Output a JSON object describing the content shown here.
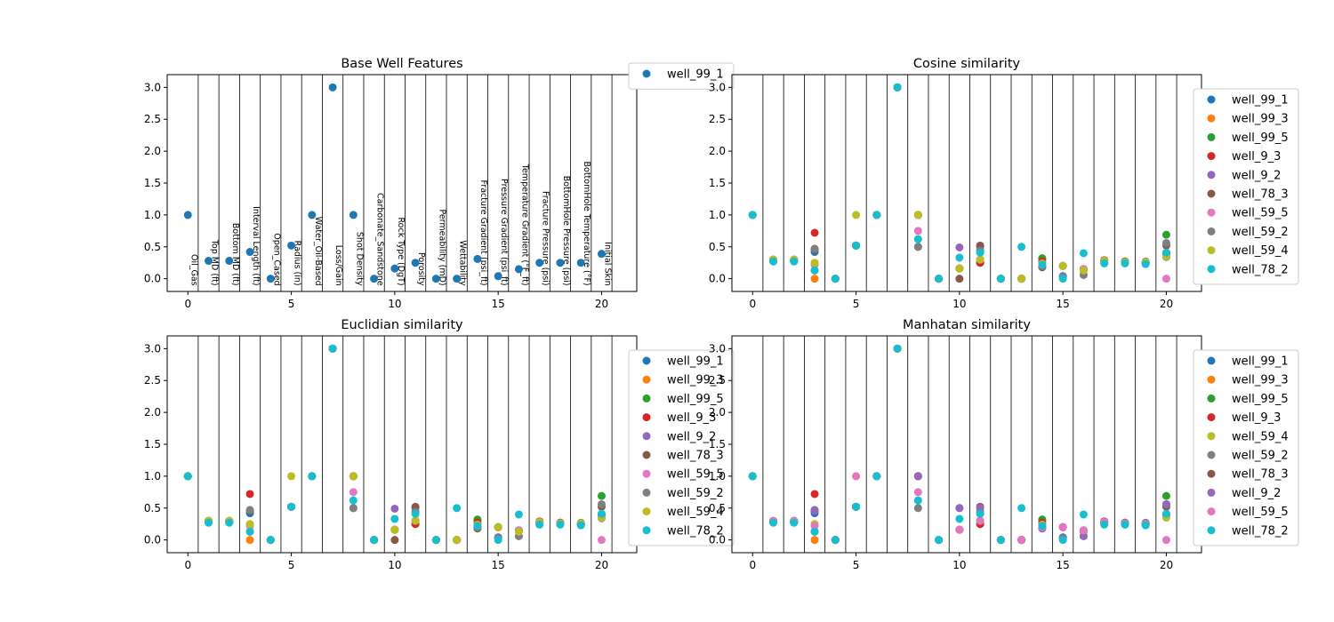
{
  "colors": {
    "well_99_1": "#1f77b4",
    "well_99_3": "#ff7f0e",
    "well_99_5": "#2ca02c",
    "well_9_3": "#d62728",
    "well_9_2": "#9467bd",
    "well_78_3": "#8c564b",
    "well_59_5": "#e377c2",
    "well_59_2": "#7f7f7f",
    "well_59_4": "#bcbd22",
    "well_78_2": "#17becf"
  },
  "chart_data": [
    {
      "type": "scatter",
      "title": "Base Well Features",
      "xlim": [
        -1,
        21.7
      ],
      "ylim": [
        -0.2,
        3.2
      ],
      "x_ticks": [
        0,
        5,
        10,
        15,
        20
      ],
      "y_ticks": [
        0.0,
        0.5,
        1.0,
        1.5,
        2.0,
        2.5,
        3.0
      ],
      "grid": "vertical lines between features",
      "legend_position": "outside top-right",
      "feature_labels": [
        "Oil_Gas",
        "Top MD (ft)",
        "Bottom MD (ft)",
        "Interval Length (ft)",
        "Open_Cased",
        "Radius (in)",
        "Water_Oil-Based",
        "Loss/Gain",
        "Shot Density",
        "Carbonate_Sandstone",
        "Rock Type (DgT)",
        "Porosity",
        "Permeability (mD)",
        "Wettability",
        "Fracture Gradient (psi_ft)",
        "Pressure Gradient (psi_ft)",
        "Temperature Gradient (°F_ft)",
        "Fracture Pressure (psi)",
        "BottomHole Pressure (psi)",
        "BottomHole Temperature (°F)",
        "Initial Skin"
      ],
      "series": [
        {
          "name": "well_99_1",
          "values": [
            1.0,
            0.28,
            0.28,
            0.42,
            0.0,
            0.52,
            1.0,
            3.0,
            1.0,
            0.0,
            0.16,
            0.25,
            0.0,
            0.0,
            0.31,
            0.04,
            0.15,
            0.25,
            0.25,
            0.25,
            0.39
          ]
        }
      ]
    },
    {
      "type": "scatter",
      "title": "Cosine similarity",
      "xlim": [
        -1,
        21.7
      ],
      "ylim": [
        -0.2,
        3.2
      ],
      "x_ticks": [
        0,
        5,
        10,
        15,
        20
      ],
      "y_ticks": [
        0.0,
        0.5,
        1.0,
        1.5,
        2.0,
        2.5,
        3.0
      ],
      "legend_position": "outside right",
      "series": [
        {
          "name": "well_99_1",
          "values": [
            1.0,
            0.28,
            0.28,
            0.42,
            0.0,
            0.52,
            1.0,
            3.0,
            1.0,
            0.0,
            0.16,
            0.25,
            0.0,
            0.0,
            0.31,
            0.04,
            0.15,
            0.25,
            0.25,
            0.25,
            0.39
          ]
        },
        {
          "name": "well_99_3",
          "values": [
            1.0,
            0.3,
            0.3,
            0.0,
            0.0,
            0.52,
            1.0,
            3.0,
            1.0,
            0.0,
            0.16,
            0.3,
            0.0,
            0.0,
            0.31,
            0.2,
            0.15,
            0.28,
            0.27,
            0.26,
            0.4
          ]
        },
        {
          "name": "well_99_5",
          "values": [
            1.0,
            0.3,
            0.3,
            0.13,
            0.0,
            0.52,
            1.0,
            3.0,
            1.0,
            0.0,
            0.16,
            0.3,
            0.0,
            0.0,
            0.32,
            0.04,
            0.15,
            0.28,
            0.26,
            0.26,
            0.69
          ]
        },
        {
          "name": "well_9_3",
          "values": [
            1.0,
            0.28,
            0.28,
            0.72,
            0.0,
            0.52,
            1.0,
            3.0,
            1.0,
            0.0,
            0.16,
            0.25,
            0.0,
            0.0,
            0.27,
            0.2,
            0.15,
            0.29,
            0.27,
            0.25,
            0.4
          ]
        },
        {
          "name": "well_9_2",
          "values": [
            1.0,
            0.28,
            0.28,
            0.46,
            0.0,
            0.52,
            1.0,
            3.0,
            1.0,
            0.0,
            0.49,
            0.5,
            0.0,
            0.0,
            0.18,
            0.03,
            0.06,
            0.28,
            0.26,
            0.25,
            0.34
          ]
        },
        {
          "name": "well_78_3",
          "values": [
            1.0,
            0.28,
            0.28,
            0.46,
            0.0,
            0.52,
            1.0,
            3.0,
            0.5,
            0.0,
            0.0,
            0.52,
            0.0,
            0.0,
            0.18,
            0.2,
            0.15,
            0.29,
            0.27,
            0.25,
            0.52
          ]
        },
        {
          "name": "well_59_5",
          "values": [
            1.0,
            0.3,
            0.3,
            0.22,
            0.0,
            0.52,
            1.0,
            3.0,
            0.75,
            0.0,
            0.16,
            0.3,
            0.0,
            0.0,
            0.2,
            0.2,
            0.15,
            0.28,
            0.26,
            0.25,
            0.0
          ]
        },
        {
          "name": "well_59_2",
          "values": [
            1.0,
            0.28,
            0.28,
            0.47,
            0.0,
            0.52,
            1.0,
            3.0,
            0.5,
            0.0,
            0.16,
            0.44,
            0.0,
            0.0,
            0.2,
            0.2,
            0.06,
            0.28,
            0.26,
            0.27,
            0.56
          ]
        },
        {
          "name": "well_59_4",
          "values": [
            1.0,
            0.3,
            0.3,
            0.25,
            0.0,
            1.0,
            1.0,
            3.0,
            1.0,
            0.0,
            0.16,
            0.3,
            0.0,
            0.0,
            0.24,
            0.2,
            0.13,
            0.28,
            0.26,
            0.26,
            0.35
          ]
        },
        {
          "name": "well_78_2",
          "values": [
            1.0,
            0.27,
            0.27,
            0.13,
            0.0,
            0.52,
            1.0,
            3.0,
            0.62,
            0.0,
            0.33,
            0.41,
            0.0,
            0.5,
            0.22,
            0.0,
            0.4,
            0.24,
            0.24,
            0.23,
            0.41
          ]
        }
      ]
    },
    {
      "type": "scatter",
      "title": "Euclidian similarity",
      "xlim": [
        -1,
        21.7
      ],
      "ylim": [
        -0.2,
        3.2
      ],
      "x_ticks": [
        0,
        5,
        10,
        15,
        20
      ],
      "y_ticks": [
        0.0,
        0.5,
        1.0,
        1.5,
        2.0,
        2.5,
        3.0
      ],
      "legend_position": "outside right",
      "series": [
        {
          "name": "well_99_1",
          "values": [
            1.0,
            0.28,
            0.28,
            0.42,
            0.0,
            0.52,
            1.0,
            3.0,
            1.0,
            0.0,
            0.16,
            0.25,
            0.0,
            0.0,
            0.31,
            0.04,
            0.15,
            0.25,
            0.25,
            0.25,
            0.39
          ]
        },
        {
          "name": "well_99_3",
          "values": [
            1.0,
            0.3,
            0.3,
            0.0,
            0.0,
            0.52,
            1.0,
            3.0,
            1.0,
            0.0,
            0.16,
            0.3,
            0.0,
            0.0,
            0.31,
            0.2,
            0.15,
            0.28,
            0.27,
            0.26,
            0.4
          ]
        },
        {
          "name": "well_99_5",
          "values": [
            1.0,
            0.3,
            0.3,
            0.13,
            0.0,
            0.52,
            1.0,
            3.0,
            1.0,
            0.0,
            0.16,
            0.3,
            0.0,
            0.0,
            0.32,
            0.04,
            0.15,
            0.28,
            0.26,
            0.26,
            0.69
          ]
        },
        {
          "name": "well_9_3",
          "values": [
            1.0,
            0.28,
            0.28,
            0.72,
            0.0,
            0.52,
            1.0,
            3.0,
            1.0,
            0.0,
            0.16,
            0.25,
            0.0,
            0.0,
            0.27,
            0.2,
            0.15,
            0.29,
            0.27,
            0.25,
            0.4
          ]
        },
        {
          "name": "well_9_2",
          "values": [
            1.0,
            0.28,
            0.28,
            0.46,
            0.0,
            0.52,
            1.0,
            3.0,
            1.0,
            0.0,
            0.49,
            0.5,
            0.0,
            0.0,
            0.18,
            0.03,
            0.06,
            0.28,
            0.26,
            0.25,
            0.34
          ]
        },
        {
          "name": "well_78_3",
          "values": [
            1.0,
            0.28,
            0.28,
            0.46,
            0.0,
            0.52,
            1.0,
            3.0,
            0.5,
            0.0,
            0.0,
            0.52,
            0.0,
            0.0,
            0.18,
            0.2,
            0.15,
            0.29,
            0.27,
            0.25,
            0.52
          ]
        },
        {
          "name": "well_59_5",
          "values": [
            1.0,
            0.3,
            0.3,
            0.22,
            0.0,
            0.52,
            1.0,
            3.0,
            0.75,
            0.0,
            0.16,
            0.3,
            0.0,
            0.0,
            0.2,
            0.2,
            0.15,
            0.28,
            0.26,
            0.25,
            0.0
          ]
        },
        {
          "name": "well_59_2",
          "values": [
            1.0,
            0.28,
            0.28,
            0.47,
            0.0,
            0.52,
            1.0,
            3.0,
            0.5,
            0.0,
            0.16,
            0.44,
            0.0,
            0.0,
            0.2,
            0.2,
            0.06,
            0.28,
            0.26,
            0.27,
            0.56
          ]
        },
        {
          "name": "well_59_4",
          "values": [
            1.0,
            0.3,
            0.3,
            0.25,
            0.0,
            1.0,
            1.0,
            3.0,
            1.0,
            0.0,
            0.16,
            0.3,
            0.0,
            0.0,
            0.24,
            0.2,
            0.13,
            0.28,
            0.26,
            0.26,
            0.35
          ]
        },
        {
          "name": "well_78_2",
          "values": [
            1.0,
            0.27,
            0.27,
            0.13,
            0.0,
            0.52,
            1.0,
            3.0,
            0.62,
            0.0,
            0.33,
            0.41,
            0.0,
            0.5,
            0.22,
            0.0,
            0.4,
            0.24,
            0.24,
            0.23,
            0.41
          ]
        }
      ]
    },
    {
      "type": "scatter",
      "title": "Manhatan similarity",
      "xlim": [
        -1,
        21.7
      ],
      "ylim": [
        -0.2,
        3.2
      ],
      "x_ticks": [
        0,
        5,
        10,
        15,
        20
      ],
      "y_ticks": [
        0.0,
        0.5,
        1.0,
        1.5,
        2.0,
        2.5,
        3.0
      ],
      "legend_position": "outside right",
      "series": [
        {
          "name": "well_99_1",
          "values": [
            1.0,
            0.28,
            0.28,
            0.42,
            0.0,
            0.52,
            1.0,
            3.0,
            1.0,
            0.0,
            0.16,
            0.25,
            0.0,
            0.0,
            0.31,
            0.04,
            0.15,
            0.25,
            0.25,
            0.25,
            0.39
          ]
        },
        {
          "name": "well_99_3",
          "values": [
            1.0,
            0.3,
            0.3,
            0.0,
            0.0,
            0.52,
            1.0,
            3.0,
            1.0,
            0.0,
            0.16,
            0.3,
            0.0,
            0.0,
            0.31,
            0.2,
            0.15,
            0.28,
            0.27,
            0.26,
            0.4
          ]
        },
        {
          "name": "well_99_5",
          "values": [
            1.0,
            0.3,
            0.3,
            0.13,
            0.0,
            0.52,
            1.0,
            3.0,
            1.0,
            0.0,
            0.16,
            0.3,
            0.0,
            0.0,
            0.32,
            0.04,
            0.15,
            0.28,
            0.26,
            0.26,
            0.69
          ]
        },
        {
          "name": "well_9_3",
          "values": [
            1.0,
            0.28,
            0.28,
            0.72,
            0.0,
            0.52,
            1.0,
            3.0,
            1.0,
            0.0,
            0.16,
            0.25,
            0.0,
            0.0,
            0.27,
            0.2,
            0.15,
            0.29,
            0.27,
            0.25,
            0.4
          ]
        },
        {
          "name": "well_59_4",
          "values": [
            1.0,
            0.3,
            0.3,
            0.25,
            0.0,
            1.0,
            1.0,
            3.0,
            1.0,
            0.0,
            0.16,
            0.3,
            0.0,
            0.0,
            0.24,
            0.2,
            0.13,
            0.28,
            0.26,
            0.26,
            0.35
          ]
        },
        {
          "name": "well_59_2",
          "values": [
            1.0,
            0.28,
            0.28,
            0.47,
            0.0,
            0.52,
            1.0,
            3.0,
            0.5,
            0.0,
            0.16,
            0.44,
            0.0,
            0.0,
            0.2,
            0.2,
            0.06,
            0.28,
            0.26,
            0.27,
            0.56
          ]
        },
        {
          "name": "well_78_3",
          "values": [
            1.0,
            0.28,
            0.28,
            0.46,
            0.0,
            0.52,
            1.0,
            3.0,
            1.0,
            0.0,
            0.5,
            0.52,
            0.0,
            0.0,
            0.18,
            0.2,
            0.15,
            0.29,
            0.27,
            0.25,
            0.52
          ]
        },
        {
          "name": "well_9_2",
          "values": [
            1.0,
            0.28,
            0.28,
            0.46,
            0.0,
            0.52,
            1.0,
            3.0,
            1.0,
            0.0,
            0.5,
            0.5,
            0.0,
            0.0,
            0.18,
            0.03,
            0.06,
            0.28,
            0.26,
            0.25,
            0.56
          ]
        },
        {
          "name": "well_59_5",
          "values": [
            1.0,
            0.3,
            0.3,
            0.22,
            0.0,
            1.0,
            1.0,
            3.0,
            0.75,
            0.0,
            0.16,
            0.3,
            0.0,
            0.0,
            0.2,
            0.2,
            0.15,
            0.28,
            0.26,
            0.25,
            0.0
          ]
        },
        {
          "name": "well_78_2",
          "values": [
            1.0,
            0.27,
            0.27,
            0.13,
            0.0,
            0.52,
            1.0,
            3.0,
            0.62,
            0.0,
            0.33,
            0.41,
            0.0,
            0.5,
            0.22,
            0.0,
            0.4,
            0.24,
            0.24,
            0.23,
            0.41
          ]
        }
      ]
    }
  ]
}
